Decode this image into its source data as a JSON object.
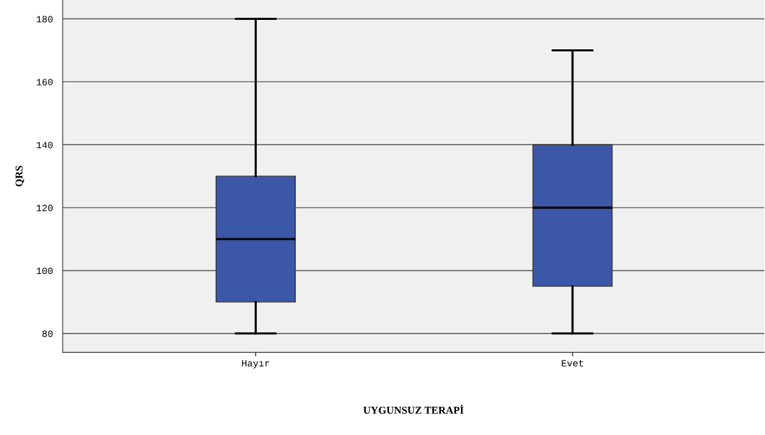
{
  "chart_data": {
    "type": "box",
    "xlabel": "UYGUNSUZ TERAPİ",
    "ylabel": "QRS",
    "categories": [
      "Hayır",
      "Evet"
    ],
    "series": [
      {
        "color": "#3c56a8",
        "boxes": [
          {
            "low": 80,
            "q1": 90,
            "median": 110,
            "q3": 130,
            "high": 180
          },
          {
            "low": 80,
            "q1": 95,
            "median": 120,
            "q3": 140,
            "high": 170
          }
        ]
      }
    ],
    "ylim": [
      74,
      186
    ],
    "yticks": [
      80,
      100,
      120,
      140,
      160,
      180
    ],
    "grid": "y",
    "legend": false
  }
}
